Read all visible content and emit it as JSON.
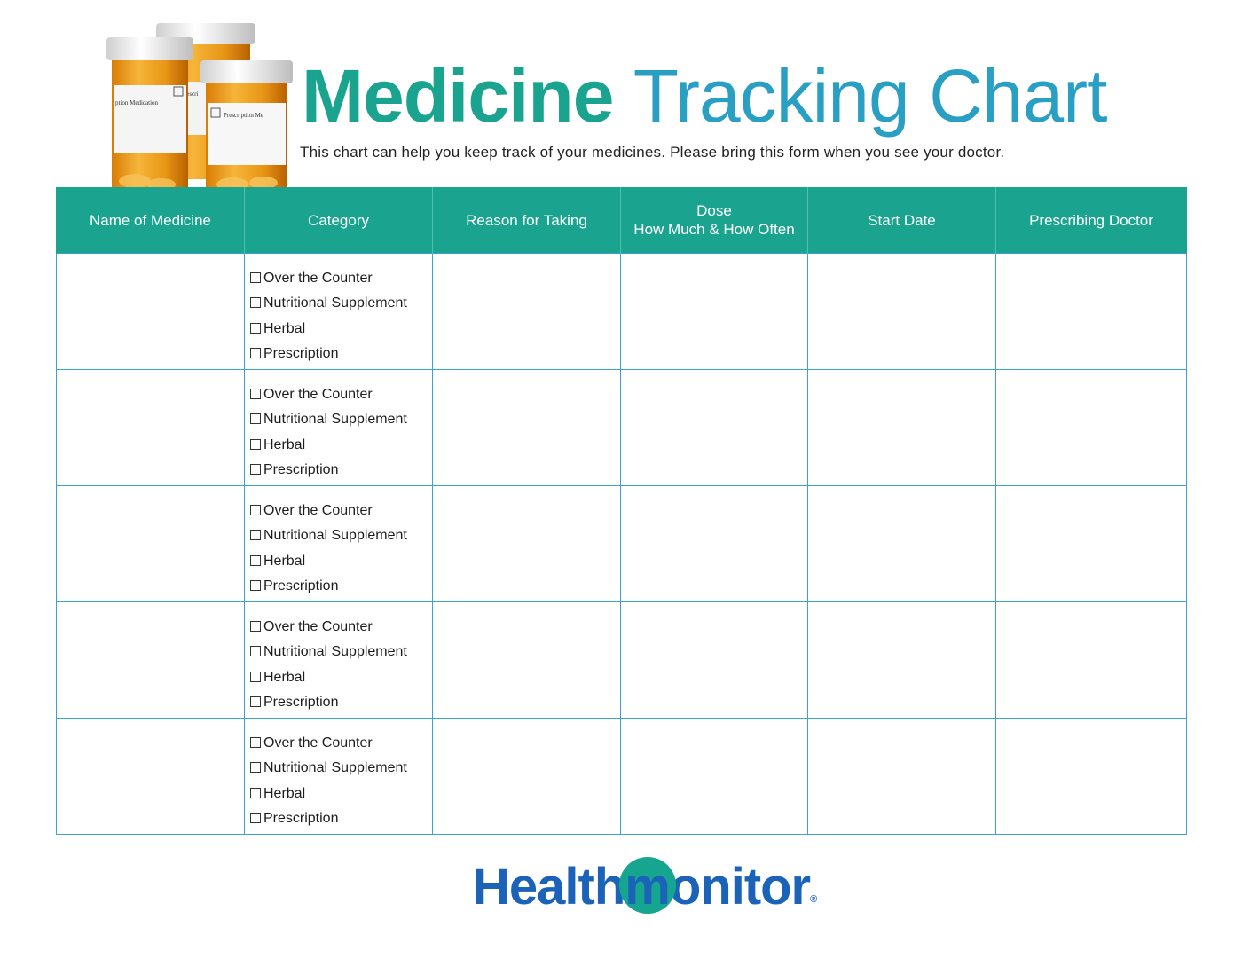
{
  "header": {
    "title_part1": "Medicine",
    "title_part2": "Tracking Chart",
    "subtitle": "This chart can help you keep track of your medicines. Please bring this form when you see your doctor."
  },
  "image": {
    "name": "prescription-bottles-icon",
    "bottle_labels": [
      "ption Medication",
      "Prescri",
      "Prescription Me"
    ]
  },
  "table": {
    "headers": {
      "name": "Name of Medicine",
      "category": "Category",
      "reason": "Reason for Taking",
      "dose_line1": "Dose",
      "dose_line2": "How Much & How Often",
      "start_date": "Start Date",
      "doctor": "Prescribing Doctor"
    },
    "category_options": [
      "Over the Counter",
      "Nutritional Supplement",
      "Herbal",
      "Prescription"
    ],
    "row_count": 5
  },
  "logo": {
    "part1": "Healt",
    "m_h": "h",
    "m_letter": "m",
    "part2": "onitor",
    "reg": "®"
  },
  "colors": {
    "teal": "#1aa38e",
    "blue": "#2a9fc4",
    "grid": "#3aa3cf",
    "logo_blue": "#1a63b8"
  }
}
